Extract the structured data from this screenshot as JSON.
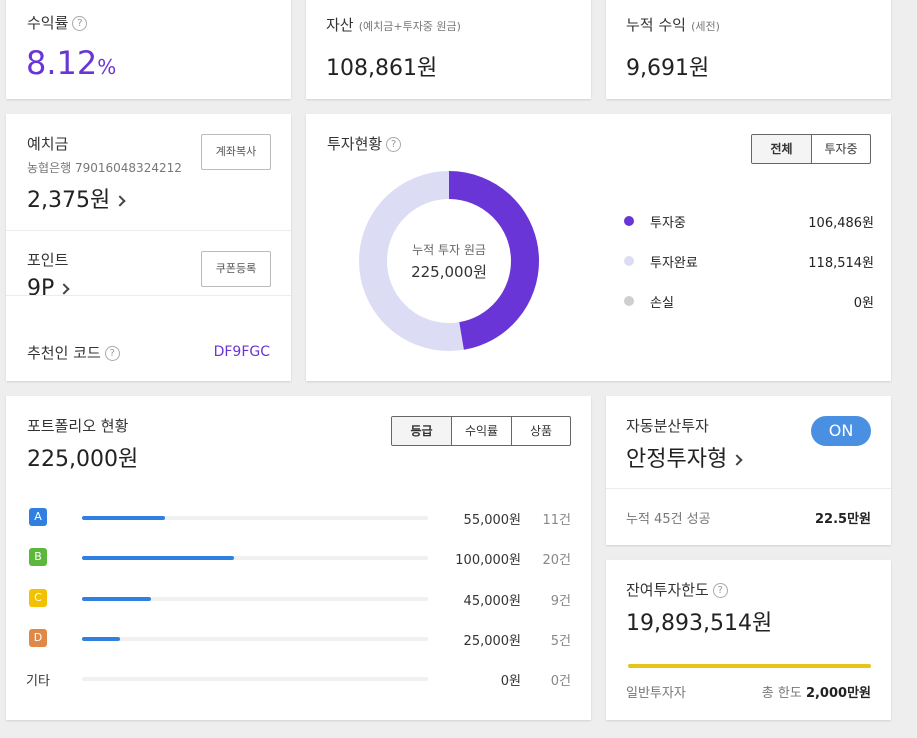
{
  "yield_card": {
    "label": "수익률",
    "value": "8.12",
    "unit": "%"
  },
  "assets_card": {
    "label": "자산",
    "sublabel": "(예치금+투자중 원금)",
    "value": "108,861원"
  },
  "profit_card": {
    "label": "누적 수익",
    "sublabel": "(세전)",
    "value": "9,691원"
  },
  "deposit": {
    "label": "예치금",
    "bank": "농협은행 79016048324212",
    "value": "2,375원",
    "copy_btn": "계좌복사",
    "point_label": "포인트",
    "point_value": "9P",
    "coupon_btn": "쿠폰등록",
    "referral_label": "추천인 코드",
    "referral_code": "DF9FGC"
  },
  "invest_status": {
    "title": "투자현황",
    "tabs": [
      "전체",
      "투자중"
    ],
    "center_label": "누적 투자 원금",
    "center_value": "225,000원",
    "legend": [
      {
        "name": "투자중",
        "value": "106,486원",
        "color": "#6a35d6"
      },
      {
        "name": "투자완료",
        "value": "118,514원",
        "color": "#dddcf5"
      },
      {
        "name": "손실",
        "value": "0원",
        "color": "#cfcfcf"
      }
    ],
    "donut": {
      "investing": 106486,
      "completed": 118514,
      "loss": 0
    }
  },
  "portfolio": {
    "title": "포트폴리오 현황",
    "total": "225,000원",
    "tabs": [
      "등급",
      "수익률",
      "상품"
    ],
    "grades": [
      {
        "grade": "A",
        "color": "#2f80e0",
        "amount": "55,000원",
        "count": "11건",
        "ratio": 0.24
      },
      {
        "grade": "B",
        "color": "#5cb83c",
        "amount": "100,000원",
        "count": "20건",
        "ratio": 0.44
      },
      {
        "grade": "C",
        "color": "#f2c200",
        "amount": "45,000원",
        "count": "9건",
        "ratio": 0.2
      },
      {
        "grade": "D",
        "color": "#e08848",
        "amount": "25,000원",
        "count": "5건",
        "ratio": 0.11
      },
      {
        "grade": "기타",
        "color": "",
        "amount": "0원",
        "count": "0건",
        "ratio": 0
      }
    ]
  },
  "auto_invest": {
    "label": "자동분산투자",
    "value": "안정투자형",
    "toggle": "ON",
    "toggle_color": "#4a90e2",
    "success_label": "누적 45건 성공",
    "success_value": "22.5만원"
  },
  "limit": {
    "label": "잔여투자한도",
    "value": "19,893,514원",
    "bar_color": "#e8c31a",
    "bar_ratio": 1,
    "investor_type": "일반투자자",
    "total_prefix": "총 한도",
    "total_value": "2,000만원"
  }
}
